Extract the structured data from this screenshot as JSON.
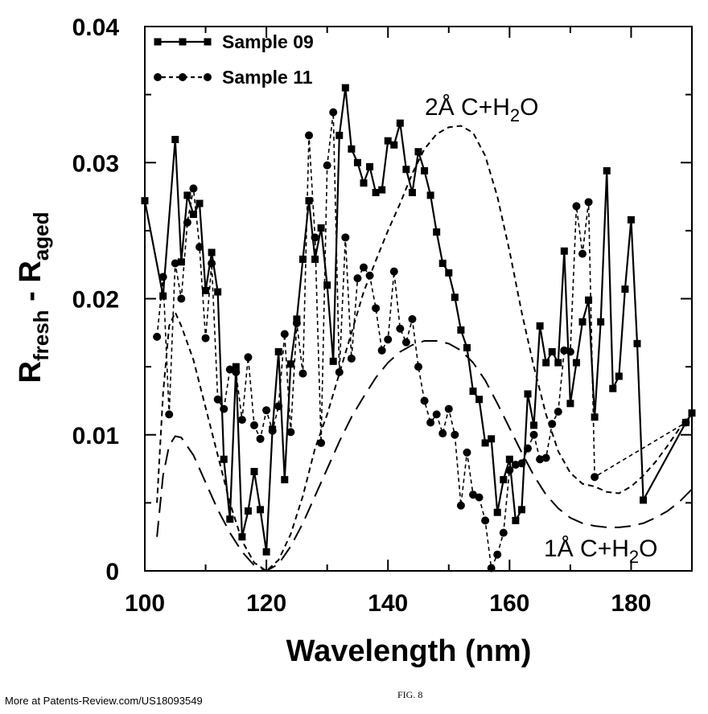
{
  "chart_data": {
    "type": "line",
    "xlabel": "Wavelength (nm)",
    "ylabel": [
      "R",
      "fresh",
      " - R",
      "aged"
    ],
    "xlim": [
      100,
      190
    ],
    "ylim": [
      0,
      0.04
    ],
    "xticks": [
      100,
      120,
      140,
      160,
      180
    ],
    "yticks": [
      0,
      0.01,
      0.02,
      0.03,
      0.04
    ],
    "xminorticks": [
      110,
      130,
      150,
      170,
      190
    ],
    "yminorticks": [
      0.005,
      0.015,
      0.025,
      0.035
    ],
    "legend": "upper left",
    "series": [
      {
        "name": "Sample 09",
        "color": "#000000",
        "marker": "square",
        "dash": "solid",
        "x": [
          100,
          103,
          105,
          106,
          107,
          108,
          109,
          110,
          111,
          112,
          113,
          114,
          115,
          116,
          117,
          118,
          119,
          120,
          121,
          122,
          123,
          124,
          125,
          126,
          127,
          128,
          129,
          130,
          131,
          132,
          133,
          134,
          135,
          136,
          137,
          138,
          139,
          140,
          141,
          142,
          143,
          144,
          145,
          146,
          147,
          148,
          149,
          150,
          151,
          152,
          153,
          154,
          155,
          156,
          157,
          158,
          159,
          160,
          161,
          162,
          163,
          164,
          165,
          166,
          167,
          168,
          169,
          170,
          171,
          172,
          173,
          174,
          175,
          176,
          177,
          178,
          179,
          180,
          181,
          182,
          189,
          190
        ],
        "values": [
          0.0272,
          0.0202,
          0.0317,
          0.0227,
          0.0276,
          0.0262,
          0.027,
          0.0206,
          0.0234,
          0.0205,
          0.0082,
          0.0038,
          0.015,
          0.0025,
          0.0044,
          0.0073,
          0.0045,
          0.0014,
          0.0104,
          0.0161,
          0.0067,
          0.0152,
          0.0185,
          0.0229,
          0.0272,
          0.0229,
          0.0252,
          0.021,
          0.0154,
          0.032,
          0.0355,
          0.031,
          0.03,
          0.0285,
          0.0297,
          0.0278,
          0.028,
          0.0316,
          0.0313,
          0.0329,
          0.0295,
          0.0278,
          0.0308,
          0.0294,
          0.0276,
          0.0249,
          0.0226,
          0.0219,
          0.0201,
          0.0177,
          0.0164,
          0.0132,
          0.0126,
          0.0094,
          0.0097,
          0.0043,
          0.0067,
          0.0082,
          0.0037,
          0.0045,
          0.013,
          0.0107,
          0.018,
          0.0153,
          0.0161,
          0.0153,
          0.0235,
          0.0123,
          0.0153,
          0.0183,
          0.0199,
          0.0113,
          0.0183,
          0.0294,
          0.0134,
          0.0143,
          0.0207,
          0.0258,
          0.0167,
          0.0052,
          0.0109,
          0.0116
        ]
      },
      {
        "name": "Sample 11",
        "color": "#000000",
        "marker": "circle",
        "dash": "dashed",
        "x": [
          102,
          103,
          104,
          105,
          106,
          107,
          108,
          109,
          110,
          111,
          112,
          113,
          114,
          115,
          116,
          117,
          118,
          119,
          120,
          121,
          122,
          123,
          124,
          125,
          126,
          127,
          128,
          129,
          130,
          131,
          132,
          133,
          134,
          135,
          136,
          137,
          138,
          139,
          140,
          141,
          142,
          143,
          144,
          145,
          146,
          147,
          148,
          149,
          150,
          151,
          152,
          153,
          154,
          155,
          156,
          157,
          158,
          159,
          160,
          161,
          162,
          163,
          164,
          165,
          166,
          167,
          168,
          169,
          170,
          171,
          172,
          173,
          174,
          189
        ],
        "values": [
          0.0172,
          0.0216,
          0.0115,
          0.0226,
          0.02,
          0.0256,
          0.0281,
          0.0238,
          0.0171,
          0.0226,
          0.0126,
          0.0119,
          0.0148,
          0.0146,
          0.0111,
          0.0157,
          0.0107,
          0.0097,
          0.0118,
          0.0103,
          0.0121,
          0.0174,
          0.0102,
          0.0182,
          0.0145,
          0.032,
          0.0245,
          0.0094,
          0.0298,
          0.0337,
          0.0146,
          0.0245,
          0.0156,
          0.0215,
          0.0223,
          0.0217,
          0.0193,
          0.0162,
          0.017,
          0.022,
          0.0178,
          0.0168,
          0.0185,
          0.015,
          0.0125,
          0.0109,
          0.0115,
          0.0101,
          0.0119,
          0.01,
          0.0048,
          0.0087,
          0.0056,
          0.0054,
          0.0037,
          0.0002,
          0.0012,
          0.0028,
          0.0074,
          0.0078,
          0.0079,
          0.009,
          0.01,
          0.0082,
          0.0083,
          0.0108,
          0.0117,
          0.0162,
          0.0161,
          0.0268,
          0.0233,
          0.0271,
          0.0069,
          0.0109
        ]
      }
    ],
    "models": [
      {
        "label": [
          "2Å C+H",
          "2",
          "O"
        ],
        "color": "#000000",
        "dash": "short",
        "x": [
          102,
          103,
          104,
          105,
          106,
          108,
          110,
          112,
          114,
          116,
          118,
          120,
          122,
          124,
          126,
          128,
          130,
          132,
          134,
          136,
          138,
          140,
          142,
          144,
          146,
          148,
          150,
          152,
          154,
          156,
          158,
          160,
          162,
          164,
          166,
          168,
          170,
          172,
          174,
          176,
          178,
          180,
          182,
          184,
          186,
          188,
          190
        ],
        "values": [
          0.005,
          0.013,
          0.018,
          0.019,
          0.018,
          0.0155,
          0.012,
          0.0085,
          0.005,
          0.0022,
          0.0006,
          0.0,
          0.0008,
          0.0027,
          0.0055,
          0.009,
          0.0115,
          0.0145,
          0.0175,
          0.0205,
          0.0228,
          0.025,
          0.027,
          0.0292,
          0.031,
          0.0321,
          0.0326,
          0.0327,
          0.0322,
          0.0305,
          0.0275,
          0.0235,
          0.019,
          0.015,
          0.0115,
          0.0088,
          0.0072,
          0.0064,
          0.0062,
          0.0058,
          0.0057,
          0.0062,
          0.007,
          0.008,
          0.0092,
          0.0105,
          0.0115
        ]
      },
      {
        "label": [
          "1Å C+H",
          "2",
          "O"
        ],
        "color": "#000000",
        "dash": "long",
        "x": [
          102,
          103,
          104,
          105,
          106,
          108,
          110,
          112,
          114,
          116,
          118,
          120,
          122,
          124,
          126,
          128,
          130,
          132,
          134,
          136,
          138,
          140,
          142,
          144,
          146,
          148,
          150,
          152,
          154,
          156,
          158,
          160,
          162,
          164,
          166,
          168,
          170,
          172,
          174,
          176,
          178,
          180,
          182,
          184,
          186,
          188,
          190
        ],
        "values": [
          0.0025,
          0.007,
          0.0092,
          0.0099,
          0.0098,
          0.0085,
          0.0065,
          0.0045,
          0.0028,
          0.0014,
          0.0004,
          0.0,
          0.0005,
          0.0018,
          0.0035,
          0.0055,
          0.0075,
          0.0095,
          0.0113,
          0.0128,
          0.0142,
          0.0153,
          0.0161,
          0.0166,
          0.0169,
          0.0169,
          0.0167,
          0.0162,
          0.0153,
          0.014,
          0.0123,
          0.0105,
          0.0087,
          0.007,
          0.0056,
          0.0046,
          0.0039,
          0.0035,
          0.0033,
          0.0032,
          0.0032,
          0.0033,
          0.0035,
          0.0039,
          0.0044,
          0.0051,
          0.006
        ]
      }
    ],
    "source_note": "More at Patents-Review.com/US18093549",
    "figure_label": "FIG. 8"
  }
}
